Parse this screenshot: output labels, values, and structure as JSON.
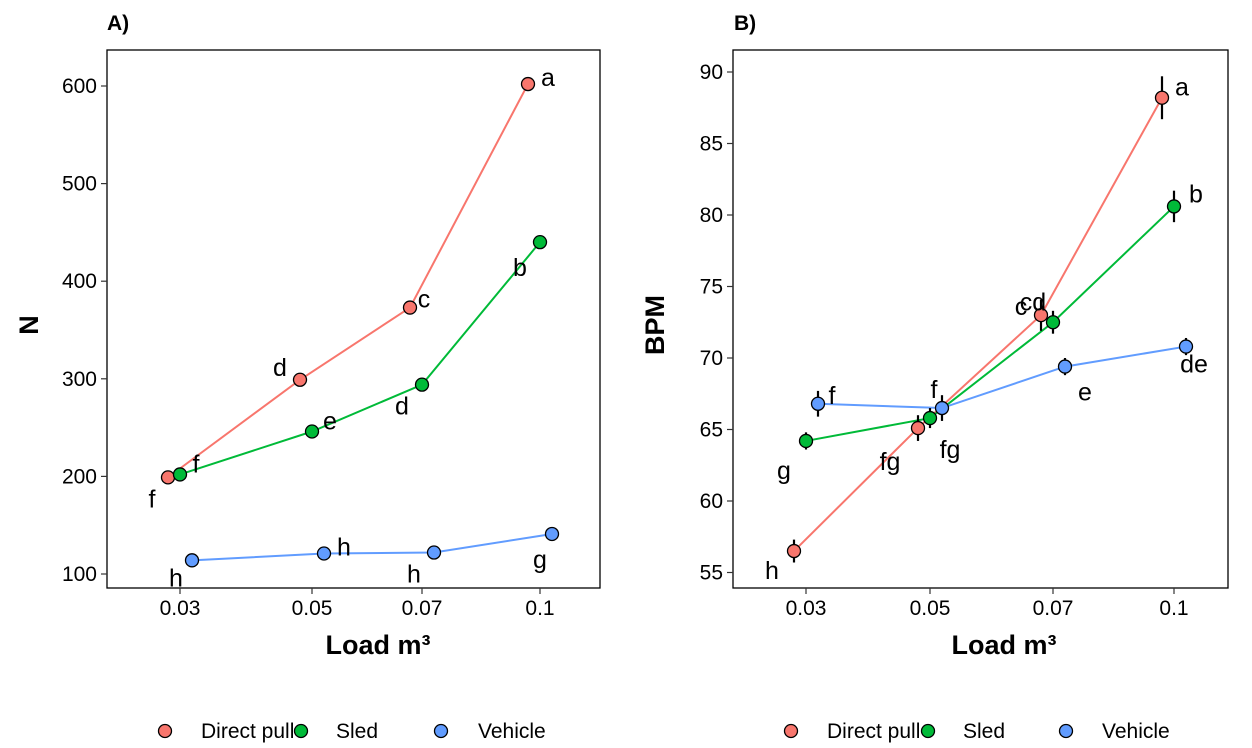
{
  "colors": {
    "Direct pull": "#f8766d",
    "Sled": "#00ba38",
    "Vehicle": "#619cff"
  },
  "chart_data": [
    {
      "type": "line",
      "panel_label": "A)",
      "xlabel": "Load m³",
      "ylabel": "N",
      "x_ticks": [
        0.03,
        0.05,
        0.07,
        0.1
      ],
      "x_tick_labels": [
        "0.03",
        "0.05",
        "0.07",
        "0.1"
      ],
      "y_ticks": [
        100,
        200,
        300,
        400,
        500,
        600
      ],
      "y_tick_labels": [
        "100",
        "200",
        "300",
        "400",
        "500",
        "600"
      ],
      "grid": false,
      "legend_position": "bottom",
      "series": [
        {
          "name": "Direct pull",
          "color": "#f8766d",
          "points": [
            {
              "x": 0.03,
              "y": 199,
              "label": "f"
            },
            {
              "x": 0.05,
              "y": 299,
              "label": "d"
            },
            {
              "x": 0.07,
              "y": 373,
              "label": "c"
            },
            {
              "x": 0.1,
              "y": 602,
              "label": "a"
            }
          ]
        },
        {
          "name": "Sled",
          "color": "#00ba38",
          "points": [
            {
              "x": 0.03,
              "y": 202,
              "label": "f"
            },
            {
              "x": 0.05,
              "y": 246,
              "label": "e"
            },
            {
              "x": 0.07,
              "y": 294,
              "label": "d"
            },
            {
              "x": 0.1,
              "y": 440,
              "label": "b"
            }
          ]
        },
        {
          "name": "Vehicle",
          "color": "#619cff",
          "points": [
            {
              "x": 0.03,
              "y": 114,
              "label": "h"
            },
            {
              "x": 0.05,
              "y": 121,
              "label": "h"
            },
            {
              "x": 0.07,
              "y": 122,
              "label": "h"
            },
            {
              "x": 0.1,
              "y": 141,
              "label": "g"
            }
          ]
        }
      ]
    },
    {
      "type": "line",
      "panel_label": "B)",
      "xlabel": "Load m³",
      "ylabel": "BPM",
      "x_ticks": [
        0.03,
        0.05,
        0.07,
        0.1
      ],
      "x_tick_labels": [
        "0.03",
        "0.05",
        "0.07",
        "0.1"
      ],
      "y_ticks": [
        55,
        60,
        65,
        70,
        75,
        80,
        85,
        90
      ],
      "y_tick_labels": [
        "55",
        "60",
        "65",
        "70",
        "75",
        "80",
        "85",
        "90"
      ],
      "error_bars": true,
      "grid": false,
      "legend_position": "bottom",
      "series": [
        {
          "name": "Direct pull",
          "color": "#f8766d",
          "points": [
            {
              "x": 0.03,
              "y": 56.5,
              "err": 0.8,
              "label": "h"
            },
            {
              "x": 0.05,
              "y": 65.1,
              "err": 0.9,
              "label": "fg"
            },
            {
              "x": 0.07,
              "y": 73.0,
              "err": 1.1,
              "label": "c"
            },
            {
              "x": 0.1,
              "y": 88.2,
              "err": 1.5,
              "label": "a"
            }
          ]
        },
        {
          "name": "Sled",
          "color": "#00ba38",
          "points": [
            {
              "x": 0.03,
              "y": 64.2,
              "err": 0.6,
              "label": "g"
            },
            {
              "x": 0.05,
              "y": 65.8,
              "err": 0.7,
              "label": "fg"
            },
            {
              "x": 0.07,
              "y": 72.5,
              "err": 0.8,
              "label": "cd"
            },
            {
              "x": 0.1,
              "y": 80.6,
              "err": 1.1,
              "label": "b"
            }
          ]
        },
        {
          "name": "Vehicle",
          "color": "#619cff",
          "points": [
            {
              "x": 0.03,
              "y": 66.8,
              "err": 0.9,
              "label": "f"
            },
            {
              "x": 0.05,
              "y": 66.5,
              "err": 0.9,
              "label": "f"
            },
            {
              "x": 0.07,
              "y": 69.4,
              "err": 0.6,
              "label": "e"
            },
            {
              "x": 0.1,
              "y": 70.8,
              "err": 0.6,
              "label": "de"
            }
          ]
        }
      ]
    }
  ]
}
